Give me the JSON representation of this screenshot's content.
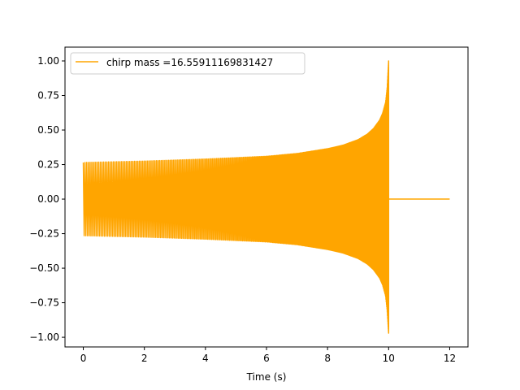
{
  "chart_data": {
    "type": "line",
    "title": "",
    "xlabel": "Time (s)",
    "ylabel": "",
    "xlim": [
      -0.6,
      12.6
    ],
    "ylim": [
      -1.07,
      1.1
    ],
    "xticks": [
      0,
      2,
      4,
      6,
      8,
      10,
      12
    ],
    "xtick_labels": [
      "0",
      "2",
      "4",
      "6",
      "8",
      "10",
      "12"
    ],
    "yticks": [
      -1.0,
      -0.75,
      -0.5,
      -0.25,
      0.0,
      0.25,
      0.5,
      0.75,
      1.0
    ],
    "ytick_labels": [
      "−1.00",
      "−0.75",
      "−0.50",
      "−0.25",
      "0.00",
      "0.25",
      "0.50",
      "0.75",
      "1.00"
    ],
    "grid": false,
    "legend_position": "upper-left",
    "series": [
      {
        "name": "chirp mass =16.55911169831427",
        "color": "#ffa500",
        "description_points": {
          "upper_envelope": {
            "x": [
              0,
              2,
              4,
              6,
              7,
              8,
              8.5,
              9,
              9.3,
              9.5,
              9.7,
              9.8,
              9.9,
              9.95,
              10.0
            ],
            "y": [
              0.265,
              0.275,
              0.29,
              0.31,
              0.33,
              0.365,
              0.39,
              0.43,
              0.47,
              0.51,
              0.57,
              0.62,
              0.7,
              0.8,
              1.0
            ]
          },
          "lower_envelope": {
            "x": [
              0,
              2,
              4,
              6,
              7,
              8,
              8.5,
              9,
              9.3,
              9.5,
              9.7,
              9.8,
              9.9,
              9.95,
              10.0
            ],
            "y": [
              -0.265,
              -0.275,
              -0.29,
              -0.31,
              -0.33,
              -0.365,
              -0.39,
              -0.43,
              -0.47,
              -0.51,
              -0.57,
              -0.62,
              -0.7,
              -0.8,
              -0.97
            ]
          },
          "post_merger": {
            "x": [
              10.0,
              12.0
            ],
            "y": [
              0.0,
              0.0
            ]
          }
        }
      }
    ]
  }
}
